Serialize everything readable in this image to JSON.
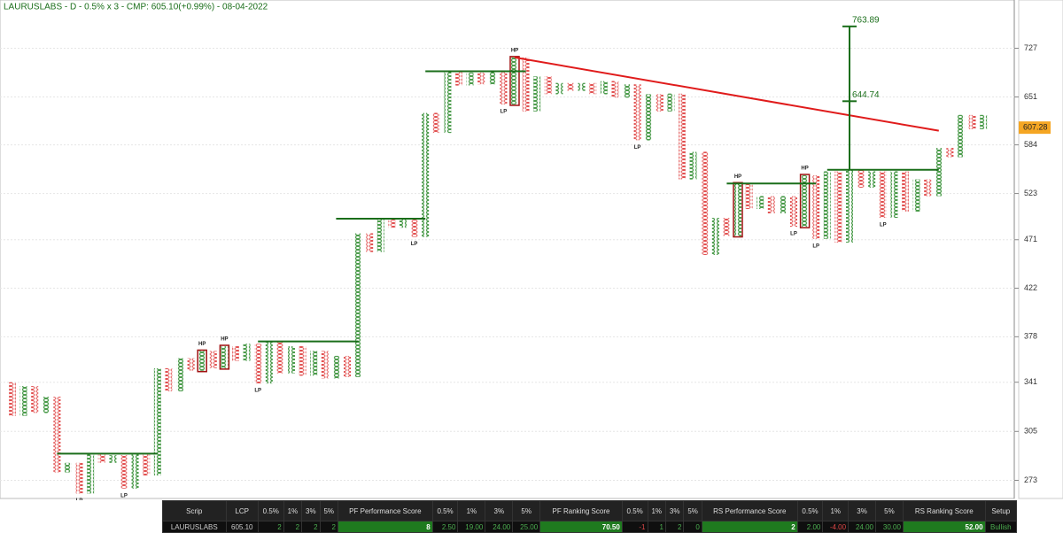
{
  "chart_data": {
    "type": "point_and_figure",
    "title": "LAURUSLABS - D - 0.5% x 3 - CMP: 605.10(+0.99%) - 08-04-2022",
    "log": true,
    "ylim": [
      262,
      811
    ],
    "yticks": [
      273,
      305,
      341,
      378,
      422,
      471,
      523,
      584,
      651,
      727
    ],
    "grid": true,
    "x_color": "#2e8b2e",
    "o_color": "#e04848",
    "columns": [
      {
        "kind": "O",
        "high": 341,
        "low": 316
      },
      {
        "kind": "X",
        "low": 316,
        "high": 338
      },
      {
        "kind": "O",
        "high": 338,
        "low": 318
      },
      {
        "kind": "X",
        "low": 318,
        "high": 330
      },
      {
        "kind": "O",
        "high": 330,
        "low": 278
      },
      {
        "kind": "X",
        "low": 278,
        "high": 284
      },
      {
        "kind": "O",
        "high": 284,
        "low": 265,
        "label": "LP"
      },
      {
        "kind": "X",
        "low": 265,
        "high": 290
      },
      {
        "kind": "O",
        "high": 290,
        "low": 284
      },
      {
        "kind": "X",
        "low": 284,
        "high": 289
      },
      {
        "kind": "O",
        "high": 289,
        "low": 268,
        "label": "LP"
      },
      {
        "kind": "X",
        "low": 268,
        "high": 290
      },
      {
        "kind": "O",
        "high": 290,
        "low": 276
      },
      {
        "kind": "X",
        "low": 276,
        "high": 352
      },
      {
        "kind": "O",
        "high": 352,
        "low": 334
      },
      {
        "kind": "X",
        "low": 334,
        "high": 360
      },
      {
        "kind": "O",
        "high": 360,
        "low": 350
      },
      {
        "kind": "X",
        "low": 350,
        "high": 366,
        "label": "HP"
      },
      {
        "kind": "O",
        "high": 366,
        "low": 352
      },
      {
        "kind": "X",
        "low": 352,
        "high": 370,
        "label": "HP"
      },
      {
        "kind": "O",
        "high": 370,
        "low": 358
      },
      {
        "kind": "X",
        "low": 358,
        "high": 372
      },
      {
        "kind": "O",
        "high": 372,
        "low": 340,
        "label": "LP"
      },
      {
        "kind": "X",
        "low": 340,
        "high": 374
      },
      {
        "kind": "O",
        "high": 374,
        "low": 348
      },
      {
        "kind": "X",
        "low": 348,
        "high": 370
      },
      {
        "kind": "O",
        "high": 370,
        "low": 346
      },
      {
        "kind": "X",
        "low": 346,
        "high": 366
      },
      {
        "kind": "O",
        "high": 366,
        "low": 344
      },
      {
        "kind": "X",
        "low": 344,
        "high": 362
      },
      {
        "kind": "O",
        "high": 362,
        "low": 345
      },
      {
        "kind": "X",
        "low": 345,
        "high": 478
      },
      {
        "kind": "O",
        "high": 478,
        "low": 458
      },
      {
        "kind": "X",
        "low": 458,
        "high": 494
      },
      {
        "kind": "O",
        "high": 494,
        "low": 484
      },
      {
        "kind": "X",
        "low": 484,
        "high": 494
      },
      {
        "kind": "O",
        "high": 494,
        "low": 474,
        "label": "LP"
      },
      {
        "kind": "X",
        "low": 474,
        "high": 628
      },
      {
        "kind": "O",
        "high": 628,
        "low": 600
      },
      {
        "kind": "X",
        "low": 600,
        "high": 690
      },
      {
        "kind": "O",
        "high": 690,
        "low": 668
      },
      {
        "kind": "X",
        "low": 668,
        "high": 688
      },
      {
        "kind": "O",
        "high": 688,
        "low": 670
      },
      {
        "kind": "X",
        "low": 670,
        "high": 690
      },
      {
        "kind": "O",
        "high": 690,
        "low": 640,
        "label": "LP"
      },
      {
        "kind": "X",
        "low": 640,
        "high": 712,
        "label": "HP"
      },
      {
        "kind": "O",
        "high": 712,
        "low": 630
      },
      {
        "kind": "X",
        "low": 630,
        "high": 682
      },
      {
        "kind": "O",
        "high": 682,
        "low": 655
      },
      {
        "kind": "X",
        "low": 655,
        "high": 672
      },
      {
        "kind": "O",
        "high": 672,
        "low": 660
      },
      {
        "kind": "X",
        "low": 660,
        "high": 672
      },
      {
        "kind": "O",
        "high": 672,
        "low": 655
      },
      {
        "kind": "X",
        "low": 655,
        "high": 675
      },
      {
        "kind": "O",
        "high": 675,
        "low": 650
      },
      {
        "kind": "X",
        "low": 650,
        "high": 670
      },
      {
        "kind": "O",
        "high": 670,
        "low": 590,
        "label": "LP"
      },
      {
        "kind": "X",
        "low": 590,
        "high": 655
      },
      {
        "kind": "O",
        "high": 655,
        "low": 630
      },
      {
        "kind": "X",
        "low": 630,
        "high": 656
      },
      {
        "kind": "O",
        "high": 656,
        "low": 540
      },
      {
        "kind": "X",
        "low": 540,
        "high": 575
      },
      {
        "kind": "O",
        "high": 575,
        "low": 455
      },
      {
        "kind": "X",
        "low": 455,
        "high": 495
      },
      {
        "kind": "O",
        "high": 495,
        "low": 475
      },
      {
        "kind": "X",
        "low": 475,
        "high": 535,
        "label": "HP"
      },
      {
        "kind": "O",
        "high": 535,
        "low": 505
      },
      {
        "kind": "X",
        "low": 505,
        "high": 520
      },
      {
        "kind": "O",
        "high": 520,
        "low": 500
      },
      {
        "kind": "X",
        "low": 500,
        "high": 520
      },
      {
        "kind": "O",
        "high": 520,
        "low": 485,
        "label": "LP"
      },
      {
        "kind": "X",
        "low": 485,
        "high": 545,
        "label": "HP"
      },
      {
        "kind": "O",
        "high": 545,
        "low": 472,
        "label": "LP"
      },
      {
        "kind": "X",
        "low": 472,
        "high": 550
      },
      {
        "kind": "O",
        "high": 550,
        "low": 468
      },
      {
        "kind": "X",
        "low": 468,
        "high": 552
      },
      {
        "kind": "O",
        "high": 552,
        "low": 530
      },
      {
        "kind": "X",
        "low": 530,
        "high": 550
      },
      {
        "kind": "O",
        "high": 550,
        "low": 495,
        "label": "LP"
      },
      {
        "kind": "X",
        "low": 495,
        "high": 550
      },
      {
        "kind": "O",
        "high": 550,
        "low": 502
      },
      {
        "kind": "X",
        "low": 502,
        "high": 540
      },
      {
        "kind": "O",
        "high": 540,
        "low": 520
      },
      {
        "kind": "X",
        "low": 520,
        "high": 580
      },
      {
        "kind": "O",
        "high": 580,
        "low": 568
      },
      {
        "kind": "X",
        "low": 568,
        "high": 625
      },
      {
        "kind": "O",
        "high": 625,
        "low": 605
      },
      {
        "kind": "X",
        "low": 605,
        "high": 625
      }
    ],
    "lines": [
      {
        "color": "#1a6e1a",
        "start": 4,
        "end": 13,
        "from": 290,
        "to": 290
      },
      {
        "color": "#1a6e1a",
        "start": 22,
        "end": 31,
        "from": 374,
        "to": 374
      },
      {
        "color": "#1a6e1a",
        "start": 29,
        "end": 37,
        "from": 494,
        "to": 494
      },
      {
        "color": "#1a6e1a",
        "start": 37,
        "end": 46,
        "from": 690,
        "to": 690
      },
      {
        "color": "#1a6e1a",
        "start": 64,
        "end": 72,
        "from": 535,
        "to": 535
      },
      {
        "color": "#1a6e1a",
        "start": 73,
        "end": 83,
        "from": 552,
        "to": 552
      },
      {
        "color": "#e01b1b",
        "start": 45,
        "end": 83,
        "from": 712,
        "to": 603
      }
    ],
    "target": {
      "column": 75,
      "base": 552,
      "levels": [
        763.89,
        644.74
      ]
    },
    "last_price": 607.28
  },
  "table": {
    "header": [
      "Scrip",
      "LCP",
      "0.5%",
      "1%",
      "3%",
      "5%",
      "PF Performance Score",
      "0.5%",
      "1%",
      "3%",
      "5%",
      "PF Ranking Score",
      "0.5%",
      "1%",
      "3%",
      "5%",
      "RS Performance Score",
      "0.5%",
      "1%",
      "3%",
      "5%",
      "RS Ranking Score",
      "Setup"
    ],
    "row": [
      "LAURUSLABS",
      "605.10",
      "2",
      "2",
      "2",
      "2",
      "8",
      "2.50",
      "19.00",
      "24.00",
      "25.00",
      "70.50",
      "-1",
      "1",
      "2",
      "0",
      "2",
      "2.00",
      "-4.00",
      "24.00",
      "30.00",
      "52.00",
      "Bullish"
    ]
  }
}
